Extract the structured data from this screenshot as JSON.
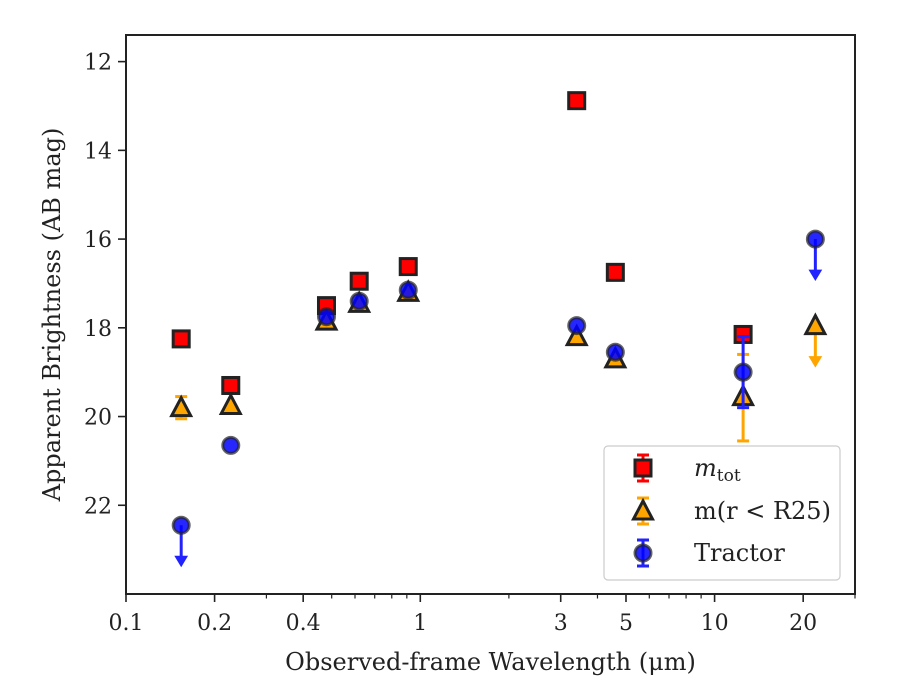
{
  "chart_data": {
    "type": "scatter",
    "xlabel": "Observed-frame Wavelength (μm)",
    "ylabel": "Apparent Brightness (AB mag)",
    "xscale": "log",
    "xlim": [
      0.1,
      30
    ],
    "ylim": [
      24.0,
      11.4
    ],
    "y_inverted": true,
    "xticks": [
      0.1,
      0.2,
      0.4,
      1,
      3,
      5,
      10,
      20
    ],
    "xtick_labels": [
      "0.1",
      "0.2",
      "0.4",
      "1",
      "3",
      "5",
      "10",
      "20"
    ],
    "yticks": [
      12,
      14,
      16,
      18,
      20,
      22
    ],
    "ytick_labels": [
      "12",
      "14",
      "16",
      "18",
      "20",
      "22"
    ],
    "legend_position": "lower-right",
    "legend": {
      "entries": [
        {
          "label_main": "m",
          "label_sub": "tot",
          "series": 0
        },
        {
          "label": "m(r < R25)",
          "series": 1
        },
        {
          "label": "Tractor",
          "series": 2
        }
      ]
    },
    "series": [
      {
        "name": "m_tot",
        "marker": "square",
        "color": "#ff0000",
        "errcolor": "#ff0000",
        "points": [
          {
            "x": 0.154,
            "y": 18.25
          },
          {
            "x": 0.227,
            "y": 19.3
          },
          {
            "x": 0.48,
            "y": 17.5
          },
          {
            "x": 0.62,
            "y": 16.95
          },
          {
            "x": 0.91,
            "y": 16.62
          },
          {
            "x": 3.4,
            "y": 12.88
          },
          {
            "x": 4.6,
            "y": 16.75
          },
          {
            "x": 12.5,
            "y": 18.15
          }
        ]
      },
      {
        "name": "m(r < R25)",
        "marker": "triangle",
        "color": "#ffa500",
        "errcolor": "#ffa500",
        "points": [
          {
            "x": 0.154,
            "y": 19.8,
            "yerr": 0.25
          },
          {
            "x": 0.227,
            "y": 19.75
          },
          {
            "x": 0.48,
            "y": 17.85
          },
          {
            "x": 0.62,
            "y": 17.45
          },
          {
            "x": 0.91,
            "y": 17.2
          },
          {
            "x": 3.4,
            "y": 18.2
          },
          {
            "x": 4.6,
            "y": 18.7
          },
          {
            "x": 12.5,
            "y": 19.55,
            "yerr_low": 0.95,
            "yerr_high": 1.0
          },
          {
            "x": 22,
            "y": 17.95,
            "upper_limit": true
          }
        ]
      },
      {
        "name": "Tractor",
        "marker": "circle",
        "color": "#0000ff",
        "errcolor": "#2222ff",
        "points": [
          {
            "x": 0.154,
            "y": 22.45,
            "upper_limit": true
          },
          {
            "x": 0.227,
            "y": 20.65
          },
          {
            "x": 0.48,
            "y": 17.75
          },
          {
            "x": 0.62,
            "y": 17.4
          },
          {
            "x": 0.91,
            "y": 17.15
          },
          {
            "x": 3.4,
            "y": 17.95
          },
          {
            "x": 4.6,
            "y": 18.55
          },
          {
            "x": 12.5,
            "y": 19.0,
            "yerr": 0.8
          },
          {
            "x": 22,
            "y": 16.0,
            "upper_limit": true
          }
        ]
      }
    ]
  }
}
